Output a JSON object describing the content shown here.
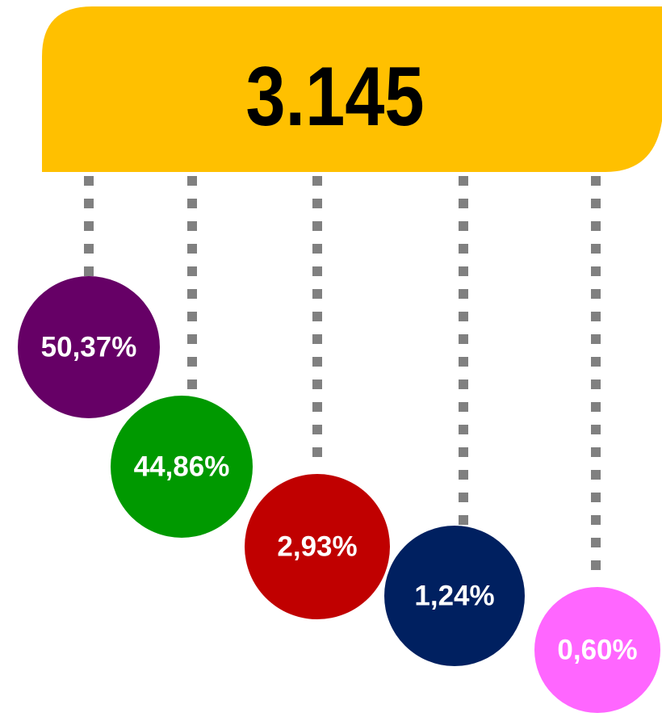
{
  "total": "3.145",
  "items": [
    {
      "label": "50,37%",
      "color": "#660066"
    },
    {
      "label": "44,86%",
      "color": "#009900"
    },
    {
      "label": "2,93%",
      "color": "#c00000"
    },
    {
      "label": "1,24%",
      "color": "#002060"
    },
    {
      "label": "0,60%",
      "color": "#ff66ff"
    }
  ]
}
